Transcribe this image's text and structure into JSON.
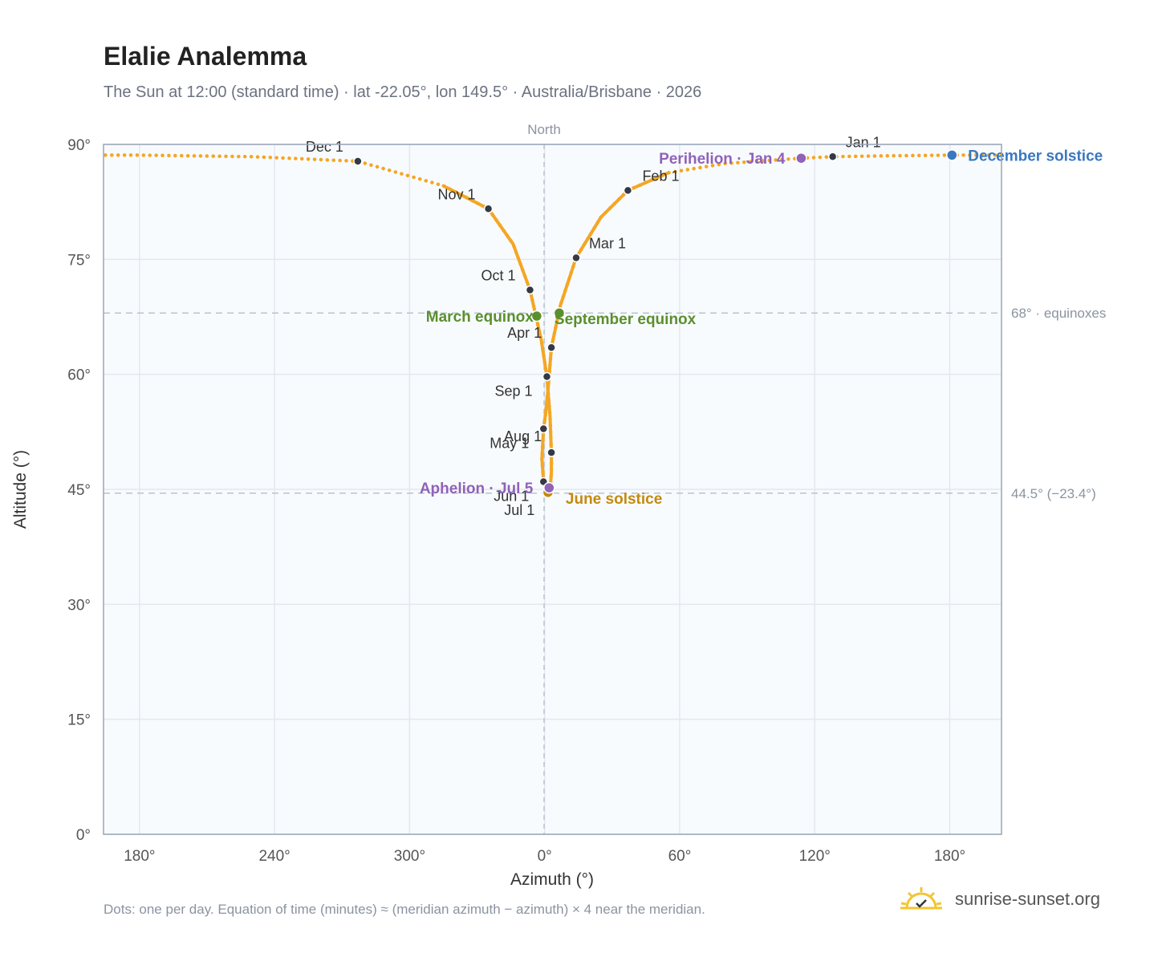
{
  "title": "Elalie Analemma",
  "subtitle": "The Sun at 12:00 (standard time) · lat -22.05°, lon 149.5° · Australia/Brisbane · 2026",
  "footnote": "Dots: one per day. Equation of time (minutes) ≈ (meridian azimuth − azimuth) × 4 near the meridian.",
  "brand": {
    "text": "sunrise-sunset.org",
    "icon": "sun-horizon-check-icon"
  },
  "colors": {
    "path": "#f5a623",
    "month": "#333a45",
    "equinox": "#5a8f2e",
    "june": "#c48a0e",
    "december": "#3a78c0",
    "apsis": "#9062b8",
    "plot_bg": "#f8fbfe"
  },
  "chart_data": {
    "type": "scatter",
    "xlabel": "Azimuth (°)",
    "ylabel": "Altitude (°)",
    "x_ticks": [
      "180°",
      "240°",
      "300°",
      "0°",
      "60°",
      "120°",
      "180°"
    ],
    "y_ticks": [
      "0°",
      "15°",
      "30°",
      "45°",
      "60°",
      "75°",
      "90°"
    ],
    "ylim": [
      0,
      90
    ],
    "xlim": [
      -196,
      203
    ],
    "grid": true,
    "north_label": "North",
    "reference_lines": [
      {
        "altitude": 68,
        "label": "68° · equinoxes"
      },
      {
        "altitude": 44.5,
        "label": "44.5° (−23.4°)"
      }
    ],
    "month_markers": [
      {
        "label": "Jan 1",
        "x": 128,
        "y": 88.4
      },
      {
        "label": "Feb 1",
        "x": 37,
        "y": 84.0
      },
      {
        "label": "Mar 1",
        "x": 14,
        "y": 75.2
      },
      {
        "label": "Apr 1",
        "x": 3,
        "y": 63.5
      },
      {
        "label": "May 1",
        "x": -0.5,
        "y": 52.9
      },
      {
        "label": "Jun 1",
        "x": -0.5,
        "y": 46.0
      },
      {
        "label": "Jul 1",
        "x": 2,
        "y": 44.6
      },
      {
        "label": "Aug 1",
        "x": 3,
        "y": 49.8
      },
      {
        "label": "Sep 1",
        "x": 1,
        "y": 59.7
      },
      {
        "label": "Oct 1",
        "x": -6.5,
        "y": 71.0
      },
      {
        "label": "Nov 1",
        "x": -25,
        "y": 81.6
      },
      {
        "label": "Dec 1",
        "x": -83,
        "y": 87.8
      }
    ],
    "events": [
      {
        "label": "March equinox",
        "x": -3.5,
        "y": 67.6,
        "color": "#5a8f2e"
      },
      {
        "label": "September equinox",
        "x": 6.5,
        "y": 68.0,
        "color": "#5a8f2e"
      },
      {
        "label": "June solstice",
        "x": 1.5,
        "y": 44.6,
        "color": "#c48a0e"
      },
      {
        "label": "December solstice",
        "x": 181,
        "y": 88.6,
        "color": "#3a78c0"
      },
      {
        "label": "Perihelion · Jan 4",
        "x": 114,
        "y": 88.2,
        "color": "#9062b8"
      },
      {
        "label": "Aphelion · Jul 5",
        "x": 2,
        "y": 45.2,
        "color": "#9062b8"
      }
    ],
    "path": [
      [
        128,
        88.4
      ],
      [
        114,
        88.2
      ],
      [
        80,
        87.5
      ],
      [
        55,
        86.3
      ],
      [
        37,
        84.0
      ],
      [
        25,
        80.5
      ],
      [
        14,
        75.2
      ],
      [
        7,
        69
      ],
      [
        3,
        63.5
      ],
      [
        1.5,
        58
      ],
      [
        0.5,
        55
      ],
      [
        -0.5,
        52.9
      ],
      [
        -1.2,
        49
      ],
      [
        -0.5,
        46.0
      ],
      [
        1.5,
        44.6
      ],
      [
        2.5,
        45.2
      ],
      [
        3,
        47.2
      ],
      [
        3,
        49.8
      ],
      [
        2.4,
        54.5
      ],
      [
        1,
        59.7
      ],
      [
        -1.5,
        64.5
      ],
      [
        -6.5,
        71.0
      ],
      [
        -14,
        77
      ],
      [
        -25,
        81.6
      ],
      [
        -45,
        84.6
      ],
      [
        -83,
        87.8
      ],
      [
        -130,
        88.4
      ],
      [
        -180,
        88.6
      ],
      [
        -196,
        88.6
      ],
      "gap",
      [
        203,
        88.6
      ],
      [
        181,
        88.6
      ],
      [
        150,
        88.5
      ],
      [
        128,
        88.4
      ]
    ]
  }
}
